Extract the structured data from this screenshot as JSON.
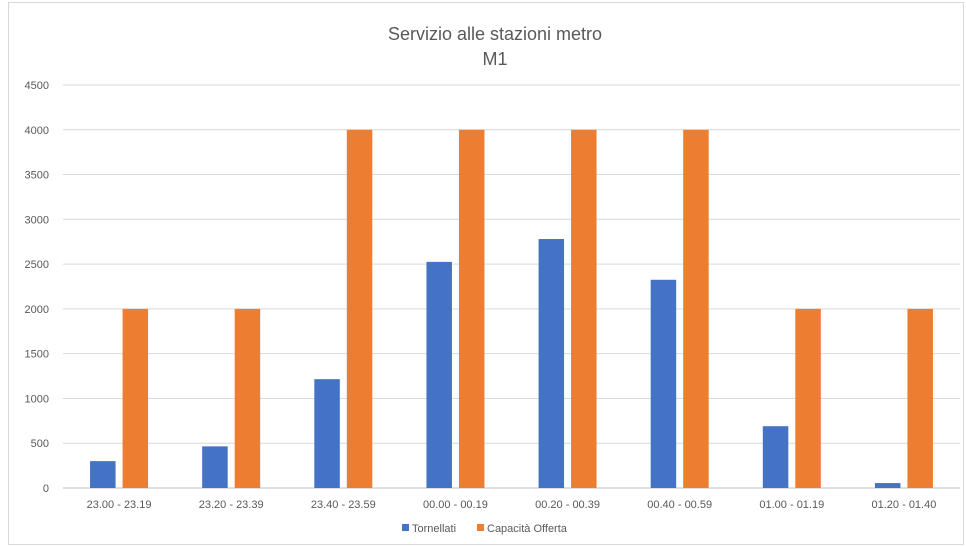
{
  "chart_data": {
    "type": "bar",
    "title": "Servizio alle stazioni metro",
    "subtitle": "M1",
    "categories": [
      "23.00 - 23.19",
      "23.20 - 23.39",
      "23.40 - 23.59",
      "00.00 - 00.19",
      "00.20 - 00.39",
      "00.40 - 00.59",
      "01.00 - 01.19",
      "01.20 - 01.40"
    ],
    "series": [
      {
        "name": "Tornellati",
        "color": "#4472C4",
        "values": [
          300,
          465,
          1215,
          2525,
          2780,
          2325,
          690,
          55
        ]
      },
      {
        "name": "Capacità Offerta",
        "color": "#ED7D31",
        "values": [
          2000,
          2000,
          4000,
          4000,
          4000,
          4000,
          2000,
          2000
        ]
      }
    ],
    "ylim": [
      0,
      4500
    ],
    "yticks": [
      0,
      500,
      1000,
      1500,
      2000,
      2500,
      3000,
      3500,
      4000,
      4500
    ],
    "grid": true,
    "legend_position": "bottom",
    "xlabel": "",
    "ylabel": ""
  }
}
